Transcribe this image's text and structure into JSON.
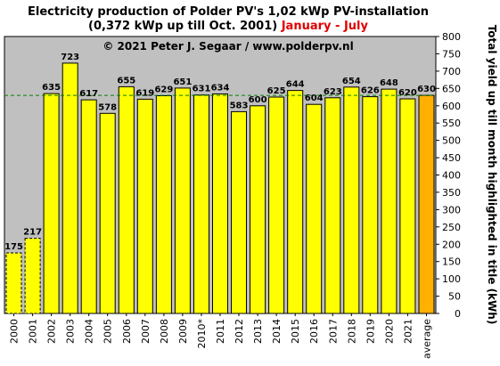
{
  "chart_data": {
    "type": "bar",
    "title_line1": "Electricity production  of Polder  PV's  1,02 kWp PV-installation",
    "title_line2_main": "(0,372 kWp up till Oct. 2001) ",
    "title_line2_highlight": "January - July",
    "watermark": "© 2021 Peter J. Segaar / www.polderpv.nl",
    "ylabel": "Total yield up till month highlighted in title (kWh)",
    "ylim": [
      0,
      800
    ],
    "yticks": [
      0,
      50,
      100,
      150,
      200,
      250,
      300,
      350,
      400,
      450,
      500,
      550,
      600,
      650,
      700,
      750,
      800
    ],
    "categories": [
      "2000",
      "2001",
      "2002",
      "2003",
      "2004",
      "2005",
      "2006",
      "2007",
      "2008",
      "2009",
      "2010*",
      "2011",
      "2012",
      "2013",
      "2014",
      "2015",
      "2016",
      "2017",
      "2018",
      "2019",
      "2020",
      "2021",
      "average"
    ],
    "values": [
      175,
      217,
      635,
      723,
      617,
      578,
      655,
      619,
      629,
      651,
      631,
      634,
      583,
      600,
      625,
      644,
      604,
      623,
      654,
      626,
      648,
      620,
      630
    ],
    "value_labels": [
      "175",
      "217",
      "635",
      "723",
      "617",
      "578",
      "655",
      "619",
      "629",
      "651",
      "631",
      "634",
      "583",
      "600",
      "625",
      "644",
      "604",
      "623",
      "654",
      "626",
      "648",
      "620",
      "630"
    ],
    "bar_styles": [
      "partial",
      "partial",
      "normal",
      "normal",
      "normal",
      "normal",
      "normal",
      "normal",
      "normal",
      "normal",
      "normal",
      "normal",
      "normal",
      "normal",
      "normal",
      "normal",
      "normal",
      "normal",
      "normal",
      "normal",
      "normal",
      "normal",
      "average"
    ],
    "average_line_value": 630,
    "grid": false,
    "legend": "none",
    "colors": {
      "plot_background": "#c0c0c0",
      "bar": "#ffff00",
      "average_bar": "#ffb000",
      "average_label": "#e00000",
      "average_line": "#008000"
    }
  }
}
